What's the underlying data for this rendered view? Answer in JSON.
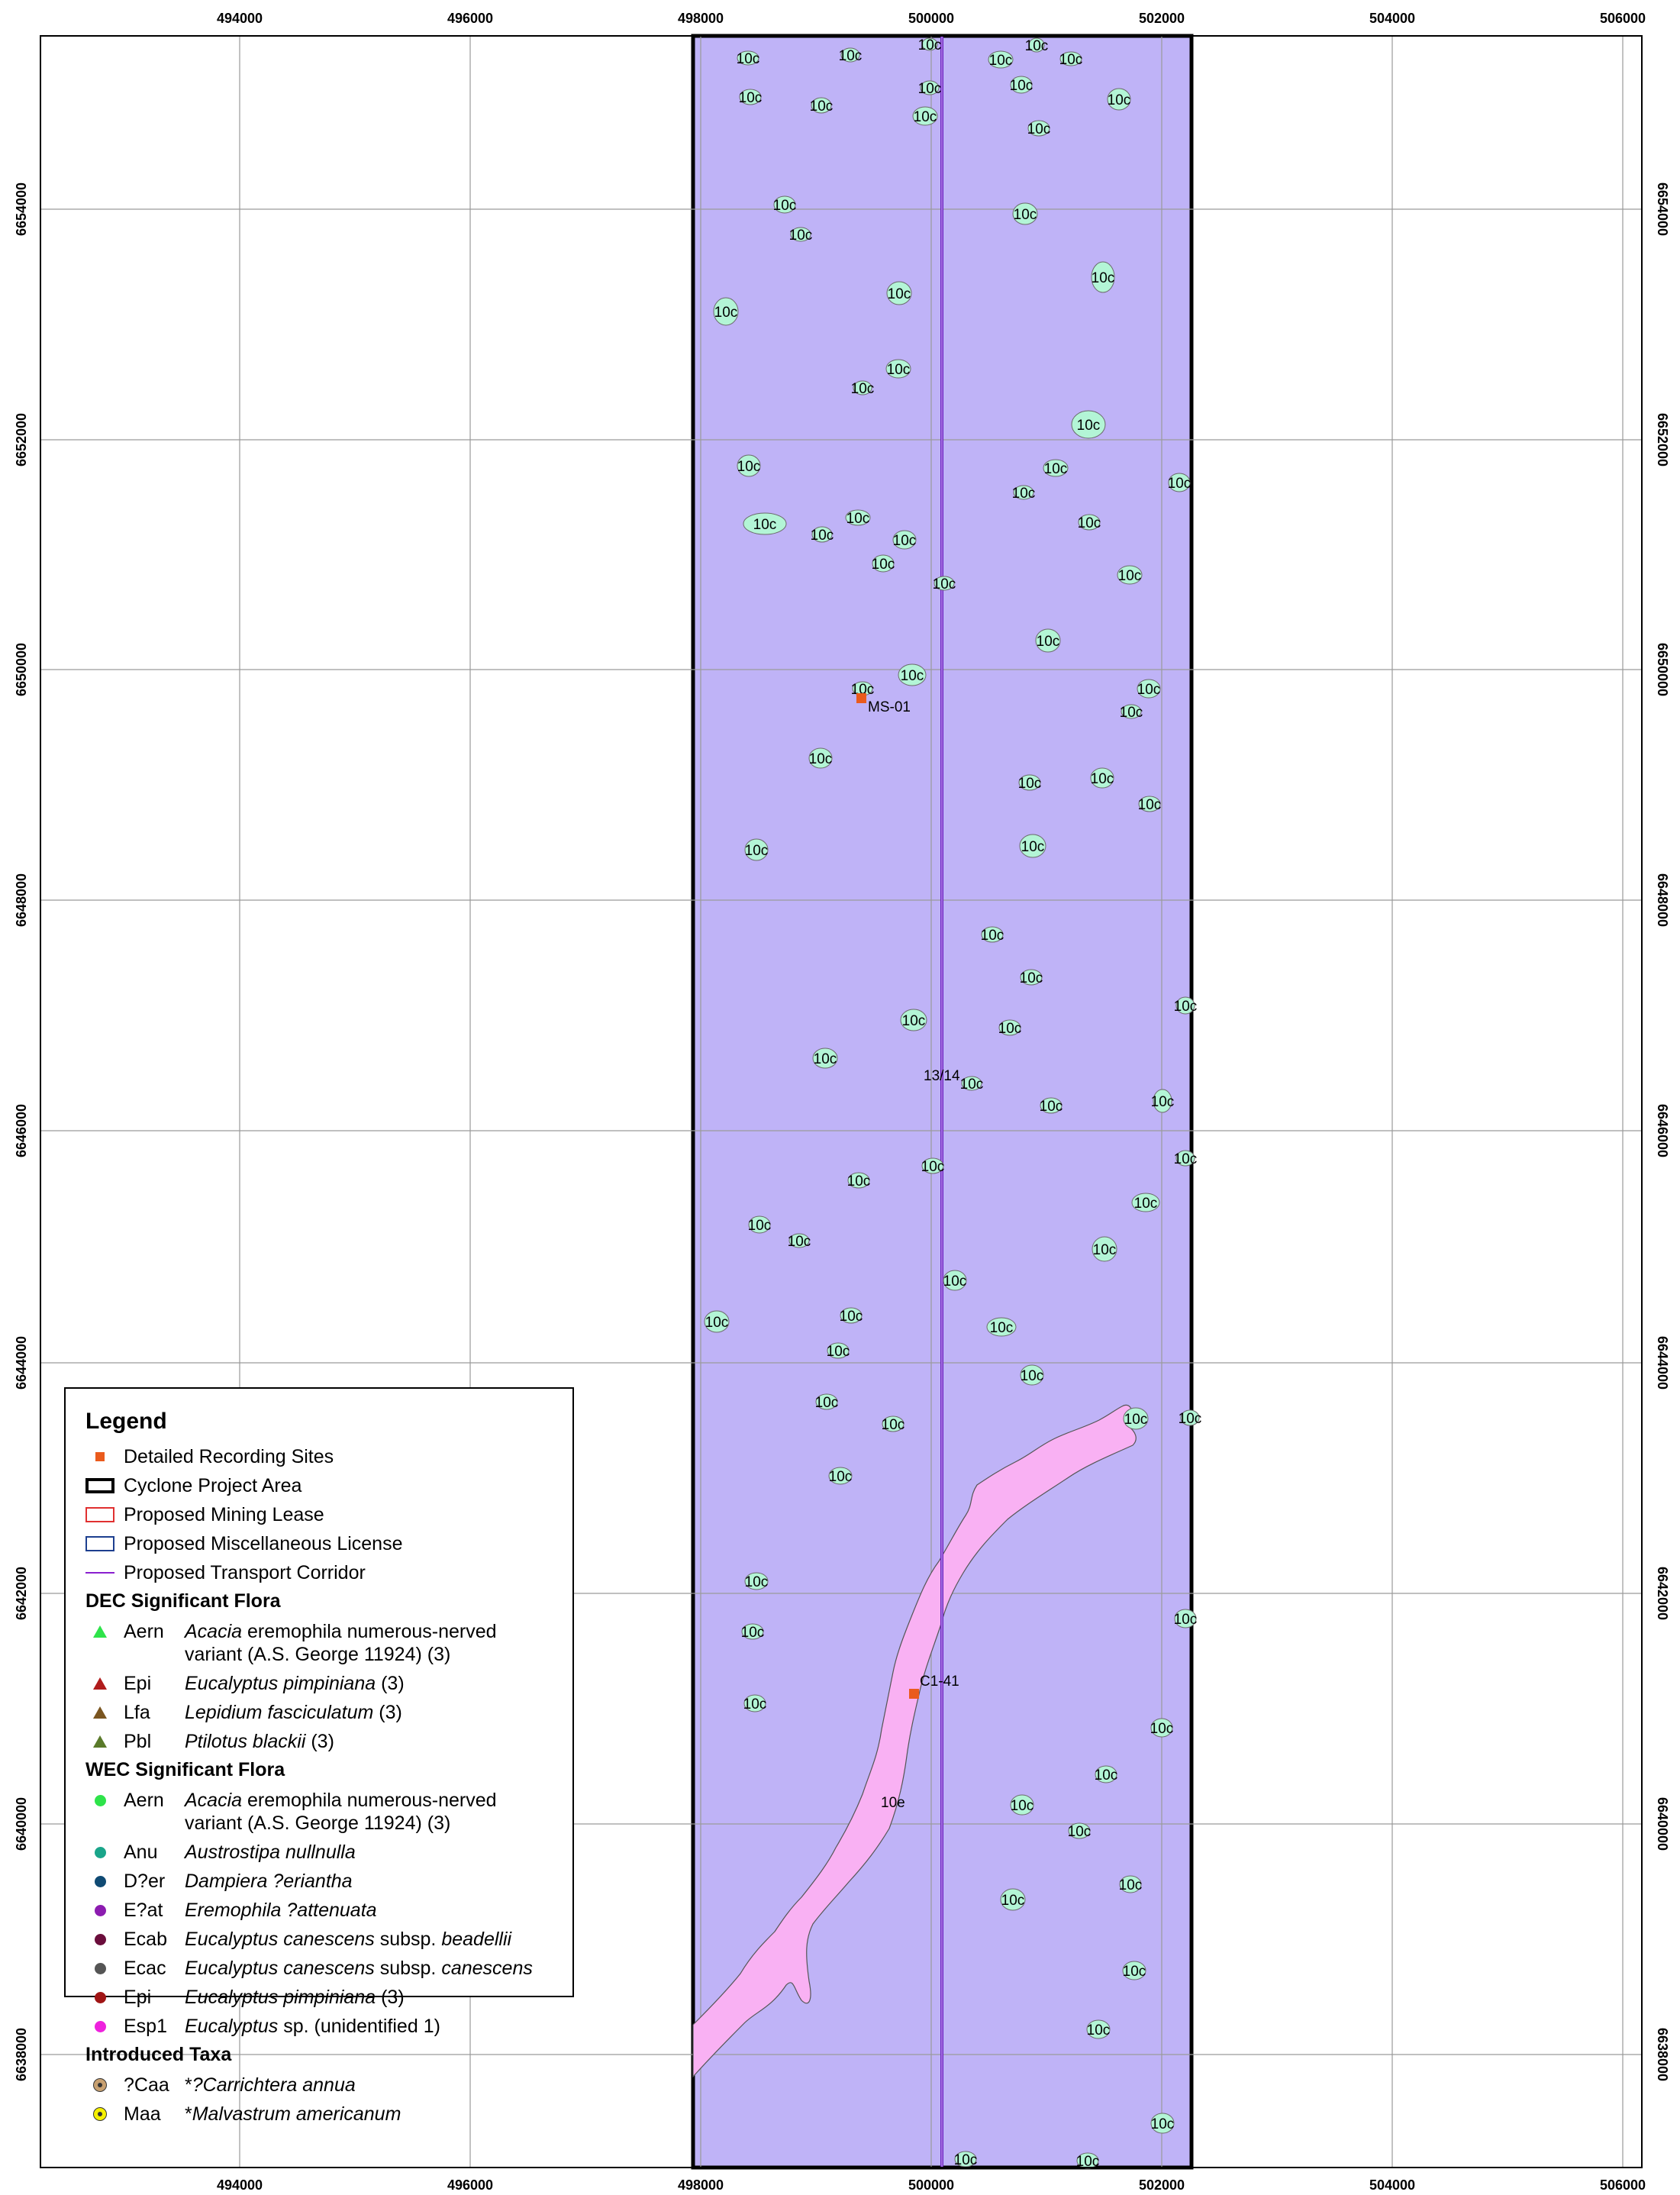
{
  "map": {
    "x_ticks": [
      "494000",
      "496000",
      "498000",
      "500000",
      "502000",
      "504000",
      "506000"
    ],
    "y_ticks": [
      "6654000",
      "6652000",
      "6650000",
      "6648000",
      "6646000",
      "6644000",
      "6642000",
      "6640000",
      "6638000"
    ],
    "project_area_fill": "#bfb3f7",
    "vegetation_10c_fill": "#b3f5d6",
    "vegetation_10e_fill": "#f9b1f3",
    "corridor_color": "#8a1fcf",
    "site_color": "#ea5b1d",
    "grid": true,
    "polygon_label_10c": "10c",
    "polygon_label_10e": "10e",
    "polygon_label_1314": "13/14",
    "site_ms01": "MS-01",
    "site_c141": "C1-41"
  },
  "legend": {
    "title": "Legend",
    "layers": [
      {
        "icon": "orange-square-icon",
        "label": "Detailed Recording Sites",
        "color": "#ea5b1d"
      },
      {
        "icon": "black-box-icon",
        "label": "Cyclone Project Area",
        "color": "#000000"
      },
      {
        "icon": "red-box-icon",
        "label": "Proposed Mining Lease",
        "color": "#e03030"
      },
      {
        "icon": "blue-box-icon",
        "label": "Proposed Miscellaneous License",
        "color": "#1d3f8f"
      },
      {
        "icon": "purple-line-icon",
        "label": "Proposed Transport Corridor",
        "color": "#8a1fcf"
      }
    ],
    "dec_heading": "DEC Significant Flora",
    "dec": [
      {
        "icon": "green-triangle-icon",
        "color": "#2ee34a",
        "code": "Aern",
        "genus": "Acacia",
        "rest": " eremophila numerous-nerved variant (A.S. George 11924) (3)"
      },
      {
        "icon": "red-triangle-icon",
        "color": "#b01c1c",
        "code": "Epi",
        "genus": "Eucalyptus pimpiniana",
        "rest": " (3)"
      },
      {
        "icon": "brown-triangle-icon",
        "color": "#7a5520",
        "code": "Lfa",
        "genus": "Lepidium fasciculatum",
        "rest": " (3)"
      },
      {
        "icon": "olive-triangle-icon",
        "color": "#5a7a2a",
        "code": "Pbl",
        "genus": "Ptilotus blackii",
        "rest": " (3)"
      }
    ],
    "wec_heading": "WEC Significant Flora",
    "wec": [
      {
        "icon": "green-dot-icon",
        "color": "#2ee34a",
        "code": "Aern",
        "genus": "Acacia",
        "rest": " eremophila numerous-nerved variant (A.S. George 11924) (3)"
      },
      {
        "icon": "teal-dot-icon",
        "color": "#1aa58a",
        "code": "Anu",
        "genus": "Austrostipa nullnulla",
        "rest": ""
      },
      {
        "icon": "navy-dot-icon",
        "color": "#0f4a73",
        "code": "D?er",
        "genus": "Dampiera ?eriantha",
        "rest": ""
      },
      {
        "icon": "purple-dot-icon",
        "color": "#8c1cb0",
        "code": "E?at",
        "genus": "Eremophila ?attenuata",
        "rest": ""
      },
      {
        "icon": "maroon-dot-icon",
        "color": "#6b0e3c",
        "code": "Ecab",
        "genus": "Eucalyptus canescens",
        "rest": " subsp. ",
        "genus2": "beadellii"
      },
      {
        "icon": "grey-dot-icon",
        "color": "#555555",
        "code": "Ecac",
        "genus": "Eucalyptus canescens",
        "rest": " subsp. ",
        "genus2": "canescens"
      },
      {
        "icon": "darkred-dot-icon",
        "color": "#a01515",
        "code": "Epi",
        "genus": "Eucalyptus pimpiniana",
        "rest": " (3)"
      },
      {
        "icon": "magenta-dot-icon",
        "color": "#ee22dd",
        "code": "Esp1",
        "genus": "Eucalyptus",
        "rest": " sp. (unidentified 1)"
      }
    ],
    "intro_heading": "Introduced Taxa",
    "intro": [
      {
        "icon": "tan-ring-icon",
        "color": "#c8a070",
        "code": "?Caa",
        "label": "*?Carrichtera annua"
      },
      {
        "icon": "yellow-ring-icon",
        "color": "#f5f000",
        "code": "Maa",
        "label": "*Malvastrum americanum"
      }
    ]
  }
}
